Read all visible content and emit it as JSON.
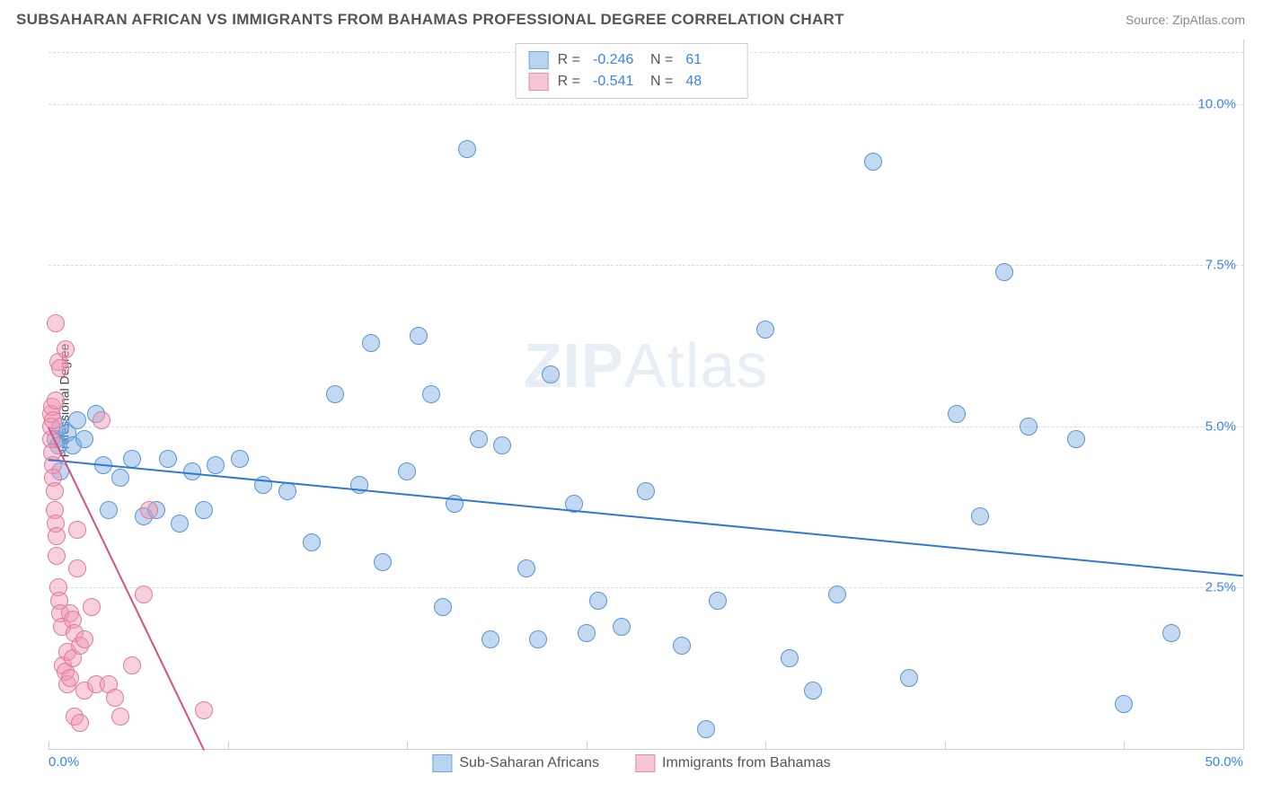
{
  "title": "SUBSAHARAN AFRICAN VS IMMIGRANTS FROM BAHAMAS PROFESSIONAL DEGREE CORRELATION CHART",
  "source": "Source: ZipAtlas.com",
  "ylabel": "Professional Degree",
  "watermark_bold": "ZIP",
  "watermark_rest": "Atlas",
  "chart": {
    "type": "scatter",
    "background_color": "#ffffff",
    "grid_color": "#dcdcdc",
    "grid_dash": "3 3",
    "border_color": "#d0d0d0",
    "xlim": [
      0,
      50
    ],
    "ylim": [
      0,
      11
    ],
    "xticks_label_left": "0.0%",
    "xticks_label_right": "50.0%",
    "xtick_positions": [
      0,
      7.5,
      15,
      22.5,
      30,
      37.5,
      45
    ],
    "yticks": [
      {
        "v": 2.5,
        "label": "2.5%"
      },
      {
        "v": 5.0,
        "label": "5.0%"
      },
      {
        "v": 7.5,
        "label": "7.5%"
      },
      {
        "v": 10.0,
        "label": "10.0%"
      },
      {
        "v": 10.8,
        "label": ""
      }
    ],
    "axis_label_color": "#3b82f6",
    "axis_label_fontsize": 15
  },
  "legend_top": {
    "rows": [
      {
        "swatch_fill": "#b8d4f0",
        "swatch_border": "#6ea8e0",
        "R": "-0.246",
        "N": "61"
      },
      {
        "swatch_fill": "#f7c6d4",
        "swatch_border": "#e88aa8",
        "R": "-0.541",
        "N": "48"
      }
    ],
    "label_R": "R =",
    "label_N": "N =",
    "value_color": "#3b82f6",
    "border_color": "#cccccc"
  },
  "legend_bottom": {
    "items": [
      {
        "label": "Sub-Saharan Africans",
        "fill": "#b8d4f0",
        "border": "#6ea8e0"
      },
      {
        "label": "Immigrants from Bahamas",
        "fill": "#f7c6d4",
        "border": "#e88aa8"
      }
    ]
  },
  "series": [
    {
      "name": "Sub-Saharan Africans",
      "color_fill": "rgba(120,170,224,0.45)",
      "color_stroke": "#5a95d6",
      "marker_radius": 9,
      "stroke_width": 1.2,
      "trend": {
        "x1": 0,
        "y1": 4.5,
        "x2": 50,
        "y2": 2.7,
        "color": "#2f78d6",
        "width": 2
      },
      "points": [
        [
          0.3,
          4.8
        ],
        [
          0.4,
          4.7
        ],
        [
          0.5,
          4.3
        ],
        [
          0.5,
          5.0
        ],
        [
          0.8,
          4.9
        ],
        [
          1.0,
          4.7
        ],
        [
          1.2,
          5.1
        ],
        [
          1.5,
          4.8
        ],
        [
          2.0,
          5.2
        ],
        [
          2.3,
          4.4
        ],
        [
          2.5,
          3.7
        ],
        [
          3.0,
          4.2
        ],
        [
          3.5,
          4.5
        ],
        [
          4.0,
          3.6
        ],
        [
          4.5,
          3.7
        ],
        [
          5.0,
          4.5
        ],
        [
          5.5,
          3.5
        ],
        [
          6.0,
          4.3
        ],
        [
          6.5,
          3.7
        ],
        [
          7.0,
          4.4
        ],
        [
          8.0,
          4.5
        ],
        [
          9.0,
          4.1
        ],
        [
          10.0,
          4.0
        ],
        [
          11.0,
          3.2
        ],
        [
          12.0,
          5.5
        ],
        [
          13.0,
          4.1
        ],
        [
          13.5,
          6.3
        ],
        [
          14.0,
          2.9
        ],
        [
          15.0,
          4.3
        ],
        [
          15.5,
          6.4
        ],
        [
          16.0,
          5.5
        ],
        [
          16.5,
          2.2
        ],
        [
          17.0,
          3.8
        ],
        [
          17.5,
          9.3
        ],
        [
          18.0,
          4.8
        ],
        [
          18.5,
          1.7
        ],
        [
          19.0,
          4.7
        ],
        [
          20.0,
          2.8
        ],
        [
          20.5,
          1.7
        ],
        [
          21.0,
          5.8
        ],
        [
          22.0,
          3.8
        ],
        [
          22.5,
          1.8
        ],
        [
          23.0,
          2.3
        ],
        [
          24.0,
          1.9
        ],
        [
          25.0,
          4.0
        ],
        [
          26.5,
          1.6
        ],
        [
          27.5,
          0.3
        ],
        [
          28.0,
          2.3
        ],
        [
          30.0,
          6.5
        ],
        [
          31.0,
          1.4
        ],
        [
          32.0,
          0.9
        ],
        [
          33.0,
          2.4
        ],
        [
          34.5,
          9.1
        ],
        [
          36.0,
          1.1
        ],
        [
          38.0,
          5.2
        ],
        [
          39.0,
          3.6
        ],
        [
          40.0,
          7.4
        ],
        [
          41.0,
          5.0
        ],
        [
          43.0,
          4.8
        ],
        [
          45.0,
          0.7
        ],
        [
          47.0,
          1.8
        ]
      ]
    },
    {
      "name": "Immigrants from Bahamas",
      "color_fill": "rgba(240,150,180,0.45)",
      "color_stroke": "#e07aa0",
      "marker_radius": 9,
      "stroke_width": 1.2,
      "trend": {
        "x1": 0,
        "y1": 5.0,
        "x2": 6.5,
        "y2": 0.0,
        "color": "#d94f84",
        "width": 2
      },
      "points": [
        [
          0.1,
          5.2
        ],
        [
          0.1,
          5.0
        ],
        [
          0.1,
          4.8
        ],
        [
          0.15,
          5.3
        ],
        [
          0.15,
          4.6
        ],
        [
          0.2,
          5.1
        ],
        [
          0.2,
          4.4
        ],
        [
          0.2,
          4.2
        ],
        [
          0.25,
          4.0
        ],
        [
          0.25,
          3.7
        ],
        [
          0.3,
          6.6
        ],
        [
          0.3,
          5.4
        ],
        [
          0.3,
          3.5
        ],
        [
          0.35,
          3.3
        ],
        [
          0.35,
          3.0
        ],
        [
          0.4,
          6.0
        ],
        [
          0.4,
          2.5
        ],
        [
          0.45,
          2.3
        ],
        [
          0.5,
          5.9
        ],
        [
          0.5,
          2.1
        ],
        [
          0.55,
          1.9
        ],
        [
          0.6,
          1.3
        ],
        [
          0.7,
          6.2
        ],
        [
          0.7,
          1.2
        ],
        [
          0.8,
          1.5
        ],
        [
          0.8,
          1.0
        ],
        [
          0.9,
          2.1
        ],
        [
          0.9,
          1.1
        ],
        [
          1.0,
          2.0
        ],
        [
          1.0,
          1.4
        ],
        [
          1.1,
          1.8
        ],
        [
          1.1,
          0.5
        ],
        [
          1.2,
          3.4
        ],
        [
          1.2,
          2.8
        ],
        [
          1.3,
          1.6
        ],
        [
          1.3,
          0.4
        ],
        [
          1.5,
          1.7
        ],
        [
          1.5,
          0.9
        ],
        [
          1.8,
          2.2
        ],
        [
          2.0,
          1.0
        ],
        [
          2.2,
          5.1
        ],
        [
          2.5,
          1.0
        ],
        [
          2.8,
          0.8
        ],
        [
          3.0,
          0.5
        ],
        [
          3.5,
          1.3
        ],
        [
          4.0,
          2.4
        ],
        [
          4.2,
          3.7
        ],
        [
          6.5,
          0.6
        ]
      ]
    }
  ]
}
